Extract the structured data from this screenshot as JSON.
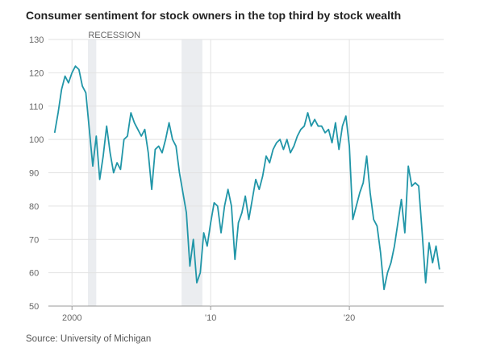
{
  "chart_data": {
    "type": "line",
    "title": "Consumer sentiment for stock owners in the top third by stock wealth",
    "source": "Source: University of Michigan",
    "recession_label": "RECESSION",
    "recessions": [
      [
        2001.15,
        2001.75
      ],
      [
        2007.9,
        2009.4
      ]
    ],
    "x": [
      1998.75,
      1999,
      1999.25,
      1999.5,
      1999.75,
      2000,
      2000.25,
      2000.5,
      2000.75,
      2001,
      2001.25,
      2001.5,
      2001.75,
      2002,
      2002.25,
      2002.5,
      2002.75,
      2003,
      2003.25,
      2003.5,
      2003.75,
      2004,
      2004.25,
      2004.5,
      2004.75,
      2005,
      2005.25,
      2005.5,
      2005.75,
      2006,
      2006.25,
      2006.5,
      2006.75,
      2007,
      2007.25,
      2007.5,
      2007.75,
      2008,
      2008.25,
      2008.5,
      2008.75,
      2009,
      2009.25,
      2009.5,
      2009.75,
      2010,
      2010.25,
      2010.5,
      2010.75,
      2011,
      2011.25,
      2011.5,
      2011.75,
      2012,
      2012.25,
      2012.5,
      2012.75,
      2013,
      2013.25,
      2013.5,
      2013.75,
      2014,
      2014.25,
      2014.5,
      2014.75,
      2015,
      2015.25,
      2015.5,
      2015.75,
      2016,
      2016.25,
      2016.5,
      2016.75,
      2017,
      2017.25,
      2017.5,
      2017.75,
      2018,
      2018.25,
      2018.5,
      2018.75,
      2019,
      2019.25,
      2019.5,
      2019.75,
      2020,
      2020.25,
      2020.5,
      2020.75,
      2021,
      2021.25,
      2021.5,
      2021.75,
      2022,
      2022.25,
      2022.5,
      2022.75,
      2023,
      2023.25,
      2023.5,
      2023.75,
      2024,
      2024.25,
      2024.5,
      2024.75,
      2025,
      2025.25,
      2025.5,
      2025.75,
      2026,
      2026.25,
      2026.5
    ],
    "series": [
      {
        "color": "#2196a8",
        "values": [
          102,
          108,
          115,
          119,
          117,
          120,
          122,
          121,
          116,
          114,
          103,
          92,
          101,
          88,
          95,
          104,
          96,
          90,
          93,
          91,
          100,
          101,
          108,
          105,
          103,
          101,
          103,
          96,
          85,
          97,
          98,
          96,
          100,
          105,
          100,
          98,
          90,
          84,
          78,
          62,
          70,
          57,
          60,
          72,
          68,
          75,
          81,
          80,
          72,
          80,
          85,
          80,
          64,
          75,
          78,
          83,
          76,
          82,
          88,
          85,
          89,
          95,
          93,
          97,
          99,
          100,
          97,
          100,
          96,
          98,
          101,
          103,
          104,
          108,
          104,
          106,
          104,
          104,
          102,
          103,
          99,
          105,
          97,
          104,
          107,
          98,
          76,
          80,
          84,
          87,
          95,
          84,
          76,
          74,
          66,
          55,
          60,
          63,
          68,
          75,
          82,
          72,
          92,
          86,
          87,
          86,
          72,
          57,
          69,
          63,
          68,
          61
        ]
      }
    ],
    "xlim": [
      1998.3,
      2026.8
    ],
    "xticks": [
      2000,
      {
        "value": 2010,
        "label": "'10"
      },
      {
        "value": 2020,
        "label": "'20"
      }
    ],
    "ylim": [
      50,
      130
    ],
    "yticks": [
      50,
      60,
      70,
      80,
      90,
      100,
      110,
      120,
      130
    ],
    "grid": true
  }
}
